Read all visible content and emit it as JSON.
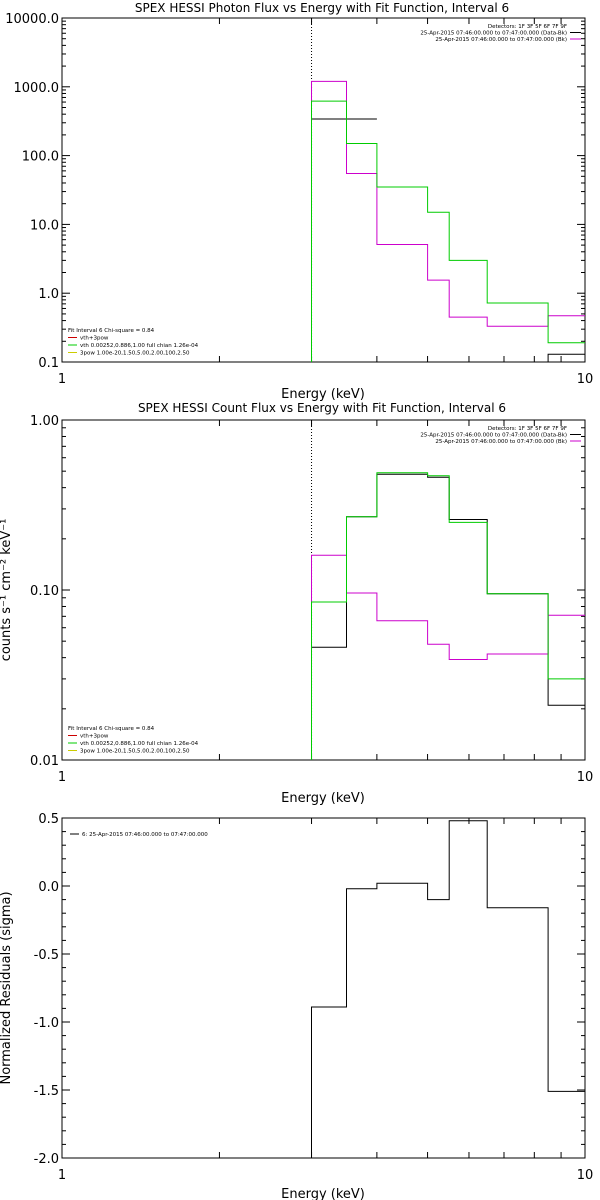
{
  "colors": {
    "black": "#000000",
    "magenta": "#cc00cc",
    "green": "#00cc00",
    "dotted": "#000000"
  },
  "chart_data": [
    {
      "id": "photon",
      "type": "line",
      "title": "SPEX HESSI Photon Flux vs Energy with Fit Function, Interval 6",
      "xlabel": "Energy (keV)",
      "ylabel": "",
      "x_scale": "log",
      "y_scale": "log",
      "xlim": [
        1,
        10
      ],
      "ylim": [
        0.1,
        10000
      ],
      "x_ticks": [
        {
          "v": 1,
          "label": "1"
        },
        {
          "v": 10,
          "label": "10"
        }
      ],
      "y_ticks": [
        {
          "v": 0.1,
          "label": "0.1"
        },
        {
          "v": 1,
          "label": "1.0"
        },
        {
          "v": 10,
          "label": "10.0"
        },
        {
          "v": 100,
          "label": "100.0"
        },
        {
          "v": 1000,
          "label": "1000.0"
        },
        {
          "v": 10000,
          "label": "10000.0"
        }
      ],
      "vline": 3.0,
      "legend_right": [
        {
          "text": "Detectors: 1F 3F 5F 6F 7F 9F",
          "color": "#000000"
        },
        {
          "text": "25-Apr-2015 07:46:00.000 to 07:47:00.000 (Data-Bk)",
          "color": "#000000"
        },
        {
          "text": "25-Apr-2015 07:46:00.000 to 07:47:00.000 (Bk)",
          "color": "#cc00cc"
        }
      ],
      "legend_left": [
        {
          "text": "Fit Interval  6    Chi-square = 0.84",
          "color": ""
        },
        {
          "text": "vth+3pow",
          "color": "#cc0000"
        },
        {
          "text": "vth 0.00252,0.886,1.00  full chian 1.26e-04",
          "color": "#00cc00"
        },
        {
          "text": "3pow 1.00e-20,1.50,5.00,2.00,100,2.50",
          "color": "#cccc00"
        }
      ],
      "edges": [
        3.0,
        3.5,
        4.0,
        5.0,
        5.5,
        6.5,
        7.5,
        8.5,
        9.5,
        10.0
      ],
      "series": [
        {
          "color": "#000000",
          "values": [
            340,
            340,
            null,
            null,
            null,
            null,
            null,
            0.13,
            0.13
          ]
        },
        {
          "color": "#cc00cc",
          "values": [
            1200,
            55,
            5.1,
            1.55,
            0.45,
            0.33,
            0.33,
            0.47,
            0.47
          ]
        },
        {
          "color": "#00cc00",
          "values": [
            620,
            150,
            35,
            15,
            3.0,
            0.72,
            0.72,
            0.19,
            0.19
          ]
        }
      ]
    },
    {
      "id": "count",
      "type": "line",
      "title": "SPEX HESSI Count Flux vs Energy with Fit Function, Interval 6",
      "xlabel": "Energy (keV)",
      "ylabel": "counts s⁻¹ cm⁻² keV⁻¹",
      "x_scale": "log",
      "y_scale": "log",
      "xlim": [
        1,
        10
      ],
      "ylim": [
        0.01,
        1.0
      ],
      "x_ticks": [
        {
          "v": 1,
          "label": "1"
        },
        {
          "v": 10,
          "label": "10"
        }
      ],
      "y_ticks": [
        {
          "v": 0.01,
          "label": "0.01"
        },
        {
          "v": 0.1,
          "label": "0.10"
        },
        {
          "v": 1,
          "label": "1.00"
        }
      ],
      "vline": 3.0,
      "legend_right": [
        {
          "text": "Detectors: 1F 3F 5F 6F 7F 9F",
          "color": "#000000"
        },
        {
          "text": "25-Apr-2015 07:46:00.000 to 07:47:00.000 (Data-Bk)",
          "color": "#000000"
        },
        {
          "text": "25-Apr-2015 07:46:00.000 to 07:47:00.000 (Bk)",
          "color": "#cc00cc"
        }
      ],
      "legend_left": [
        {
          "text": "Fit Interval  6    Chi-square = 0.84",
          "color": ""
        },
        {
          "text": "vth+3pow",
          "color": "#cc0000"
        },
        {
          "text": "vth 0.00252,0.886,1.00  full chian 1.26e-04",
          "color": "#00cc00"
        },
        {
          "text": "3pow 1.00e-20,1.50,5.00,2.00,100,2.50",
          "color": "#cccc00"
        }
      ],
      "edges": [
        3.0,
        3.5,
        4.0,
        5.0,
        5.5,
        6.5,
        7.5,
        8.5,
        9.5,
        10.0
      ],
      "series": [
        {
          "color": "#000000",
          "values": [
            0.046,
            0.27,
            0.48,
            0.46,
            0.26,
            0.095,
            0.095,
            0.021,
            0.021
          ]
        },
        {
          "color": "#cc00cc",
          "values": [
            0.16,
            0.096,
            0.066,
            0.048,
            0.039,
            0.042,
            0.042,
            0.071,
            0.071
          ]
        },
        {
          "color": "#00cc00",
          "values": [
            0.085,
            0.27,
            0.49,
            0.47,
            0.25,
            0.095,
            0.095,
            0.03,
            0.03
          ]
        }
      ]
    },
    {
      "id": "resid",
      "type": "line",
      "title": "",
      "xlabel": "Energy (keV)",
      "ylabel": "Normalized Residuals (sigma)",
      "x_scale": "log",
      "y_scale": "linear",
      "xlim": [
        1,
        10
      ],
      "ylim": [
        -2.0,
        0.5
      ],
      "x_ticks": [
        {
          "v": 1,
          "label": "1"
        },
        {
          "v": 10,
          "label": "10"
        }
      ],
      "y_ticks": [
        {
          "v": -2.0,
          "label": "-2.0"
        },
        {
          "v": -1.5,
          "label": "-1.5"
        },
        {
          "v": -1.0,
          "label": "-1.0"
        },
        {
          "v": -0.5,
          "label": "-0.5"
        },
        {
          "v": 0.0,
          "label": "0.0"
        },
        {
          "v": 0.5,
          "label": "0.5"
        }
      ],
      "vline": null,
      "legend_right": [],
      "legend_left": [
        {
          "text": "6: 25-Apr-2015 07:46:00.000 to 07:47:00.000",
          "color": "#000000"
        }
      ],
      "edges": [
        3.0,
        3.5,
        4.0,
        5.0,
        5.5,
        6.5,
        7.5,
        8.5,
        9.5,
        10.0
      ],
      "series": [
        {
          "color": "#000000",
          "values": [
            -0.89,
            -0.02,
            0.02,
            -0.1,
            0.48,
            -0.16,
            -0.16,
            -1.51,
            -1.51
          ]
        }
      ]
    }
  ]
}
